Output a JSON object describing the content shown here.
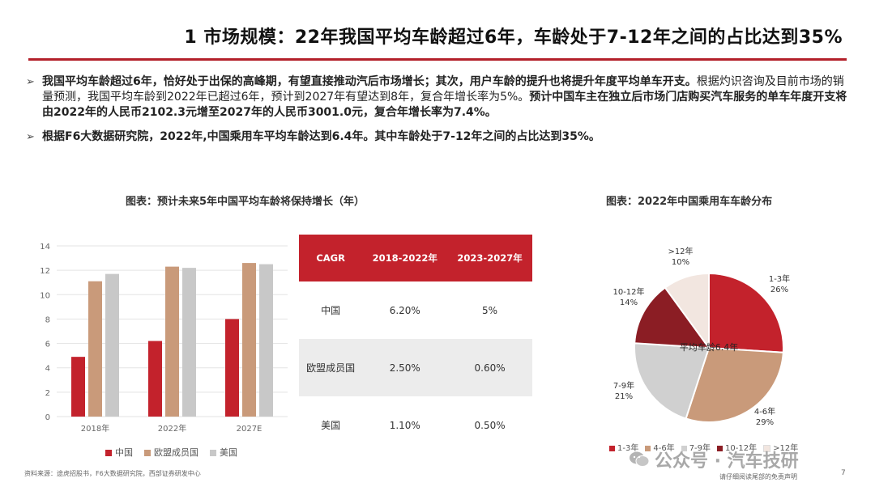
{
  "header": {
    "title": "1 市场规模：22年我国平均车龄超过6年，车龄处于7-12年之间的占比达到35%"
  },
  "bullets": [
    {
      "lead": "我国平均车龄超过6年，恰好处于出保的高峰期，有望直接推动汽后市场增长；其次，用户车龄的提升也将提升年度平均单车开支。",
      "body": "根据灼识咨询及目前市场的销量预测，我国平均车龄到2022年已超过6年，预计到2027年有望达到8年，复合年增长率为5%。",
      "tail": "预计中国车主在独立后市场门店购买汽车服务的单车年度开支将由2022年的人民币2102.3元增至2027年的人民币3001.0元，复合年增长率为7.4%。"
    },
    {
      "lead": "根据F6大数据研究院，2022年,中国乘用车平均车龄达到6.4年。其中车龄处于7-12年之间的占比达到35%。"
    }
  ],
  "bar_chart_title": "图表：预计未来5年中国平均车龄将保持增长（年）",
  "pie_chart_title": "图表：2022年中国乘用车车龄分布",
  "chart_data": [
    {
      "type": "bar",
      "categories": [
        "2018年",
        "2022年",
        "2027E"
      ],
      "series": [
        {
          "name": "中国",
          "color": "#c3222c",
          "values": [
            4.9,
            6.2,
            8.0
          ]
        },
        {
          "name": "欧盟成员国",
          "color": "#c99a7a",
          "values": [
            11.1,
            12.3,
            12.6
          ]
        },
        {
          "name": "美国",
          "color": "#c8c8c8",
          "values": [
            11.7,
            12.2,
            12.5
          ]
        }
      ],
      "yticks": [
        "0",
        "2",
        "4",
        "6",
        "8",
        "10",
        "12",
        "14"
      ],
      "ylim": [
        0,
        14
      ],
      "grid": true,
      "legend": "bottom"
    },
    {
      "type": "pie",
      "slices": [
        {
          "label": "1-3年",
          "value": 26,
          "pct": "26%",
          "color": "#c3222c"
        },
        {
          "label": "4-6年",
          "value": 29,
          "pct": "29%",
          "color": "#c99a7a"
        },
        {
          "label": "7-9年",
          "value": 21,
          "pct": "21%",
          "color": "#d0d0d0"
        },
        {
          "label": "10-12年",
          "value": 14,
          "pct": "14%",
          "color": "#8b1d24"
        },
        {
          "label": ">12年",
          "value": 10,
          "pct": "10%",
          "color": "#f2e6e0"
        }
      ],
      "center_annotation": "平均车龄6.4年",
      "legend": "bottom"
    }
  ],
  "cagr_table": {
    "headers": [
      "CAGR",
      "2018-2022年",
      "2023-2027年"
    ],
    "rows": [
      [
        "中国",
        "6.20%",
        "5%"
      ],
      [
        "欧盟成员国",
        "2.50%",
        "0.60%"
      ],
      [
        "美国",
        "1.10%",
        "0.50%"
      ]
    ]
  },
  "footer": {
    "source": "资料来源：途虎招股书，F6大数据研究院，西部证券研发中心",
    "disclaimer": "请仔细阅读尾部的免责声明",
    "page": "7",
    "watermark": "公众号 · 汽车技研"
  }
}
